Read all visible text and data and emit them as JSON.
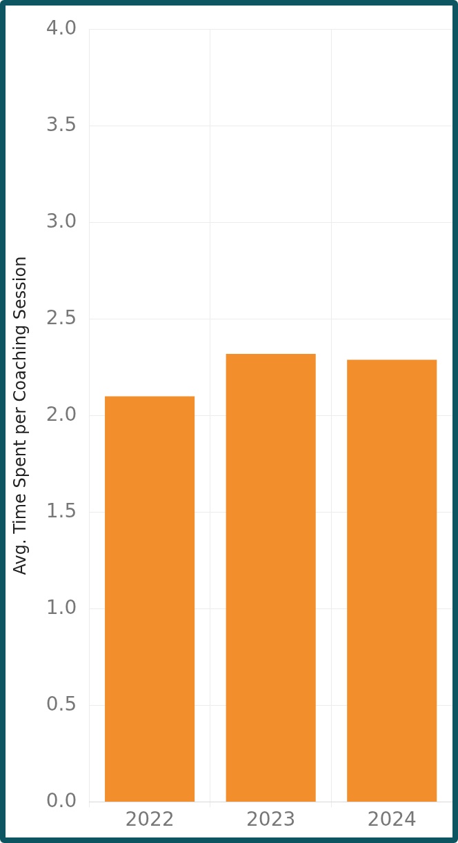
{
  "chart_data": {
    "type": "bar",
    "ylabel": "Avg. Time Spent per Coaching Session",
    "categories": [
      "2022",
      "2023",
      "2024"
    ],
    "values": [
      2.1,
      2.32,
      2.29
    ],
    "color": "#f28e2b",
    "ylim": [
      0,
      4
    ],
    "yticks": [
      {
        "value": 0,
        "label": "0.0"
      },
      {
        "value": 0.5,
        "label": "0.5"
      },
      {
        "value": 1,
        "label": "1.0"
      },
      {
        "value": 1.5,
        "label": "1.5"
      },
      {
        "value": 2,
        "label": "2.0"
      },
      {
        "value": 2.5,
        "label": "2.5"
      },
      {
        "value": 3,
        "label": "3.0"
      },
      {
        "value": 3.5,
        "label": "3.5"
      },
      {
        "value": 4,
        "label": "4.0"
      }
    ],
    "grid": true
  }
}
